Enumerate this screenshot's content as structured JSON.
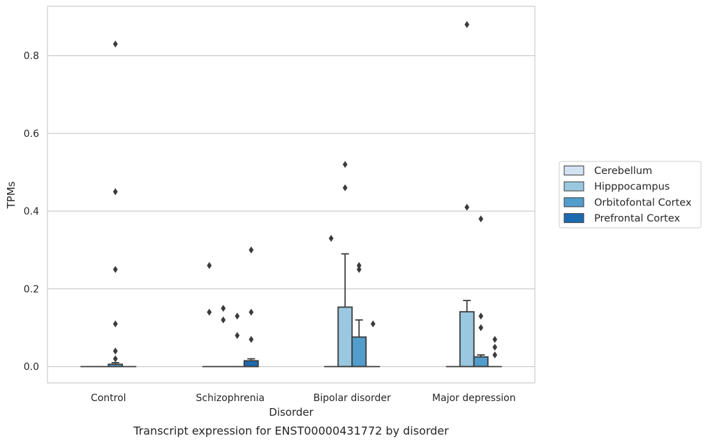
{
  "chart_data": {
    "type": "box",
    "caption": "Transcript expression for ENST00000431772 by disorder",
    "xlabel": "Disorder",
    "ylabel": "TPMs",
    "ylim": [
      -0.042,
      0.927
    ],
    "yticks": [
      "0.0",
      "0.2",
      "0.4",
      "0.6",
      "0.8"
    ],
    "grid": "horizontal",
    "legend_position": "right",
    "categories": [
      "Control",
      "Schizophrenia",
      "Bipolar disorder",
      "Major depression"
    ],
    "series": [
      {
        "name": "Cerebellum",
        "color": "#d1e2f2"
      },
      {
        "name": "Hipppocampus",
        "color": "#9ac8e0"
      },
      {
        "name": "Orbitofontal Cortex",
        "color": "#529dcc"
      },
      {
        "name": "Prefrontal Cortex",
        "color": "#1c6bb0"
      }
    ],
    "boxes": [
      [
        {
          "q1": 0,
          "median": 0,
          "q3": 0,
          "whisker_low": 0,
          "whisker_high": 0,
          "outliers": []
        },
        {
          "q1": 0,
          "median": 0,
          "q3": 0,
          "whisker_low": 0,
          "whisker_high": 0,
          "outliers": []
        },
        {
          "q1": 0,
          "median": 0,
          "q3": 0.006,
          "whisker_low": 0,
          "whisker_high": 0.01,
          "outliers": [
            0.83,
            0.45,
            0.25,
            0.11,
            0.04,
            0.02
          ]
        },
        {
          "q1": 0,
          "median": 0,
          "q3": 0,
          "whisker_low": 0,
          "whisker_high": 0,
          "outliers": []
        }
      ],
      [
        {
          "q1": 0,
          "median": 0,
          "q3": 0,
          "whisker_low": 0,
          "whisker_high": 0,
          "outliers": [
            0.26,
            0.14
          ]
        },
        {
          "q1": 0,
          "median": 0,
          "q3": 0,
          "whisker_low": 0,
          "whisker_high": 0,
          "outliers": [
            0.15,
            0.12
          ]
        },
        {
          "q1": 0,
          "median": 0,
          "q3": 0,
          "whisker_low": 0,
          "whisker_high": 0,
          "outliers": [
            0.13,
            0.08
          ]
        },
        {
          "q1": 0,
          "median": 0,
          "q3": 0.015,
          "whisker_low": 0,
          "whisker_high": 0.02,
          "outliers": [
            0.3,
            0.14,
            0.07
          ]
        }
      ],
      [
        {
          "q1": 0,
          "median": 0,
          "q3": 0,
          "whisker_low": 0,
          "whisker_high": 0,
          "outliers": [
            0.33
          ]
        },
        {
          "q1": 0,
          "median": 0,
          "q3": 0.153,
          "whisker_low": 0,
          "whisker_high": 0.29,
          "outliers": [
            0.52,
            0.46
          ]
        },
        {
          "q1": 0,
          "median": 0,
          "q3": 0.076,
          "whisker_low": 0,
          "whisker_high": 0.12,
          "outliers": [
            0.26,
            0.25
          ]
        },
        {
          "q1": 0,
          "median": 0,
          "q3": 0,
          "whisker_low": 0,
          "whisker_high": 0,
          "outliers": [
            0.11
          ]
        }
      ],
      [
        {
          "q1": 0,
          "median": 0,
          "q3": 0,
          "whisker_low": 0,
          "whisker_high": 0,
          "outliers": []
        },
        {
          "q1": 0,
          "median": 0,
          "q3": 0.141,
          "whisker_low": 0,
          "whisker_high": 0.17,
          "outliers": [
            0.88,
            0.41
          ]
        },
        {
          "q1": 0,
          "median": 0,
          "q3": 0.025,
          "whisker_low": 0,
          "whisker_high": 0.03,
          "outliers": [
            0.38,
            0.13,
            0.1
          ]
        },
        {
          "q1": 0,
          "median": 0,
          "q3": 0,
          "whisker_low": 0,
          "whisker_high": 0,
          "outliers": [
            0.07,
            0.05,
            0.03
          ]
        }
      ]
    ]
  }
}
